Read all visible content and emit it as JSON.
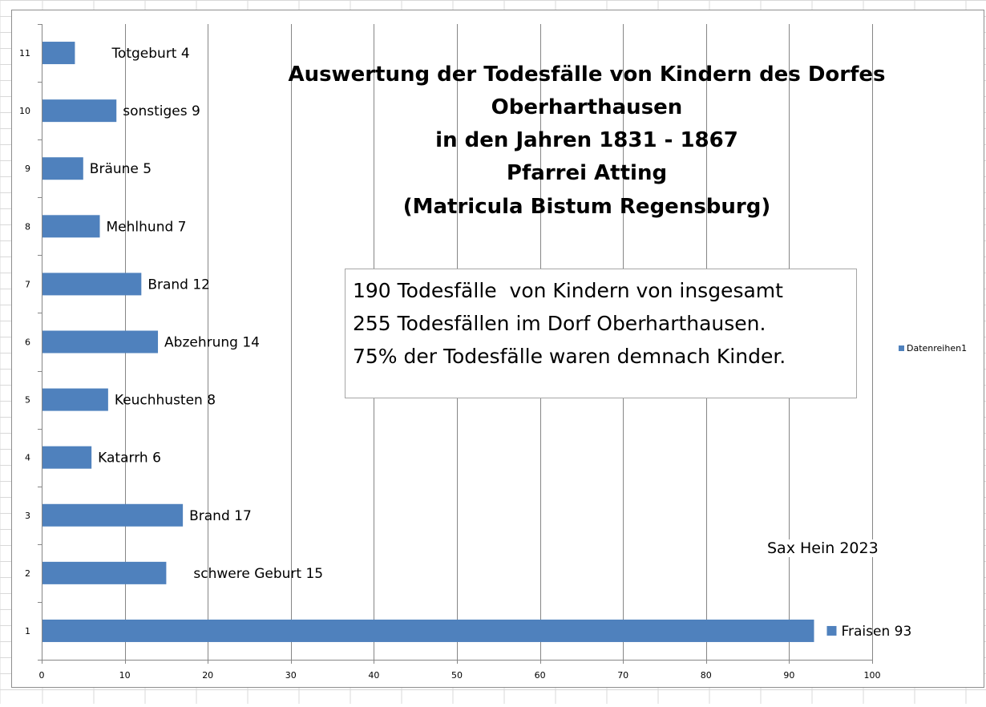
{
  "chart_data": {
    "type": "bar",
    "orientation": "horizontal",
    "title": [
      "Auswertung der Todesfälle von Kindern des Dorfes",
      "Oberharthausen",
      "in den Jahren 1831 - 1867",
      "Pfarrei Atting",
      "(Matricula Bistum Regensburg)"
    ],
    "categories": [
      "1",
      "2",
      "3",
      "4",
      "5",
      "6",
      "7",
      "8",
      "9",
      "10",
      "11"
    ],
    "series": [
      {
        "name": "Datenreihen1",
        "color": "#4f81bd",
        "values": [
          93,
          15,
          17,
          6,
          8,
          14,
          12,
          7,
          5,
          9,
          4
        ]
      }
    ],
    "data_labels": [
      "Fraisen  93",
      "schwere Geburt 15",
      "Brand 17",
      "Katarrh 6",
      "Keuchhusten 8",
      "Abzehrung 14",
      "Brand 12",
      "Mehlhund 7",
      "Bräune 5",
      "sonstiges 9",
      "Totgeburt  4"
    ],
    "xlim": [
      0,
      100
    ],
    "x_ticks": [
      0,
      10,
      20,
      30,
      40,
      50,
      60,
      70,
      80,
      90,
      100
    ],
    "grid": "vertical",
    "legend": {
      "entries": [
        "Datenreihen1"
      ],
      "position": "right"
    },
    "annotation": [
      "190 Todesfälle  von Kindern von insgesamt",
      "255 Todesfällen im Dorf Oberharthausen.",
      "75% der Todesfälle waren demnach Kinder."
    ],
    "credit": "Sax Hein 2023",
    "axis_color": "#868686",
    "grid_color": "#868686"
  }
}
